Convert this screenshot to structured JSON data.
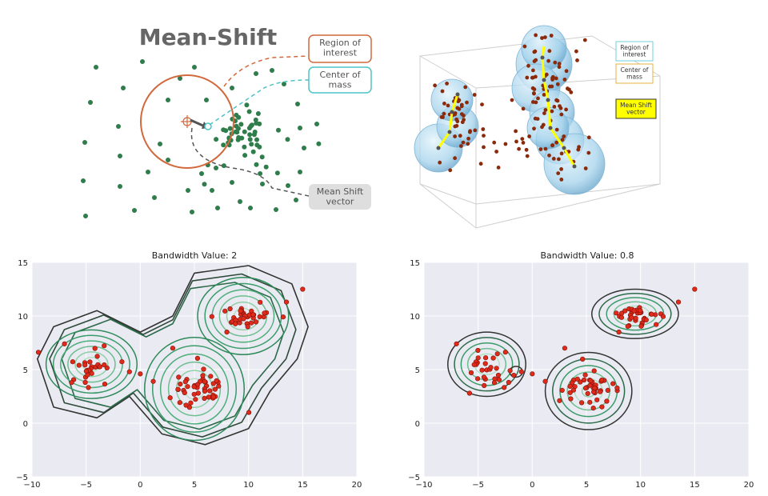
{
  "mean_shift_diagram": {
    "title": "Mean-Shift",
    "labels": {
      "region": "Region of\ninterest",
      "center": "Center of\nmass",
      "vector": "Mean Shift\nvector"
    },
    "colors": {
      "points": "#2e7d4a",
      "region": "#d2693d",
      "center": "#4cc3c9",
      "vector": "#555555"
    }
  },
  "three_d_diagram": {
    "labels": {
      "region": "Region of\ninterest",
      "center": "Center of\nmass",
      "vector": "Mean Shift\nvector"
    },
    "colors": {
      "points": "#8b2a0a",
      "sphere": "#9fd0ea",
      "path": "#ffff00",
      "vector_box": "#ffff00"
    }
  },
  "chart_data": [
    {
      "type": "scatter",
      "title": "Bandwidth Value: 2",
      "xlim": [
        -10,
        20
      ],
      "ylim": [
        -5,
        15
      ],
      "xticks": [
        "−10",
        "−5",
        "0",
        "5",
        "10",
        "15",
        "20"
      ],
      "yticks": [
        "−5",
        "0",
        "5",
        "10",
        "15"
      ],
      "grid": true,
      "clusters": [
        [
          -4.5,
          5.5
        ],
        [
          5,
          3.2
        ],
        [
          9.5,
          10
        ]
      ],
      "contour_style": "smooth kernel density, bandwidth 2"
    },
    {
      "type": "scatter",
      "title": "Bandwidth Value: 0.8",
      "xlim": [
        -10,
        20
      ],
      "ylim": [
        -5,
        15
      ],
      "xticks": [
        "−10",
        "−5",
        "0",
        "5",
        "10",
        "15",
        "20"
      ],
      "yticks": [
        "−5",
        "0",
        "5",
        "10",
        "15"
      ],
      "grid": true,
      "clusters": [
        [
          -4.5,
          5.5
        ],
        [
          5,
          3.2
        ],
        [
          9.5,
          10
        ]
      ],
      "contour_style": "kernel density, bandwidth 0.8"
    }
  ]
}
